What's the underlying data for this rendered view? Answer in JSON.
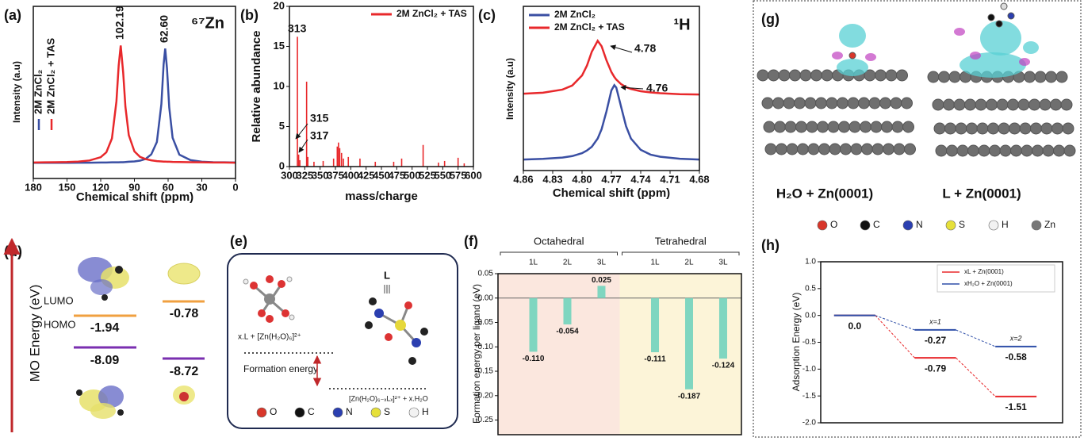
{
  "chart_data": [
    {
      "type": "line",
      "label": "(a)",
      "title": "⁶⁷Zn",
      "x_label": "Chemical shift (ppm)",
      "y_label": "Intensity (a.u)",
      "x": [
        180,
        170,
        160,
        150,
        140,
        130,
        120,
        115,
        110,
        106,
        104,
        102.19,
        100,
        98,
        95,
        90,
        85,
        80,
        75,
        70,
        66,
        64,
        62.6,
        61,
        59,
        56,
        50,
        40,
        30,
        20,
        10,
        0
      ],
      "series": [
        {
          "name": "2M ZnCl₂",
          "color": "#3a4fa3",
          "values": [
            0.1,
            0.1,
            0.1,
            0.1,
            0.101,
            0.101,
            0.102,
            0.102,
            0.103,
            0.103,
            0.103,
            0.104,
            0.104,
            0.105,
            0.107,
            0.109,
            0.114,
            0.125,
            0.154,
            0.233,
            0.475,
            0.729,
            0.83,
            0.704,
            0.454,
            0.26,
            0.152,
            0.117,
            0.107,
            0.104,
            0.103,
            0.102
          ]
        },
        {
          "name": "2M ZnCl₂ + TAS",
          "color": "#e8282b",
          "values": [
            0.102,
            0.103,
            0.104,
            0.105,
            0.108,
            0.115,
            0.136,
            0.167,
            0.256,
            0.493,
            0.722,
            0.85,
            0.677,
            0.458,
            0.277,
            0.173,
            0.138,
            0.124,
            0.116,
            0.111,
            0.109,
            0.108,
            0.108,
            0.107,
            0.107,
            0.106,
            0.105,
            0.104,
            0.103,
            0.102,
            0.102,
            0.101
          ]
        }
      ],
      "xlim": [
        180,
        0
      ],
      "ylim": [
        0,
        1.1
      ],
      "xticks": [
        180,
        150,
        120,
        90,
        60,
        30,
        0
      ],
      "annotations": [
        "102.19",
        "62.60"
      ],
      "legend": "left"
    },
    {
      "type": "bar",
      "label": "(b)",
      "x_label": "mass/charge",
      "y_label": "Relative abundance",
      "x": [
        313,
        315,
        317,
        328,
        330,
        340,
        355,
        372,
        378,
        380,
        382,
        385,
        388,
        396,
        415,
        440,
        470,
        483,
        518,
        543,
        553,
        575,
        585
      ],
      "series": [
        {
          "name": "2M ZnCl₂ + TAS",
          "color": "#e8282b",
          "values": [
            16.2,
            1.5,
            0.8,
            10.6,
            1.2,
            0.6,
            0.7,
            1.0,
            2.5,
            3.0,
            2.3,
            1.7,
            1.0,
            1.2,
            1.0,
            0.6,
            0.6,
            1.0,
            2.7,
            0.5,
            0.7,
            1.1,
            0.4
          ]
        }
      ],
      "xlim": [
        300,
        600
      ],
      "ylim": [
        0,
        20
      ],
      "xticks": [
        300,
        325,
        350,
        375,
        400,
        425,
        450,
        475,
        500,
        525,
        550,
        575,
        600
      ],
      "yticks": [
        0,
        5,
        10,
        15,
        20
      ],
      "annotations": [
        "313",
        "315",
        "317"
      ],
      "legend": "upper right"
    },
    {
      "type": "line",
      "label": "(c)",
      "title": "¹H",
      "x_label": "Chemical shift (ppm)",
      "y_label": "Intensity (a.u)",
      "x": [
        4.86,
        4.84,
        4.82,
        4.81,
        4.8,
        4.795,
        4.79,
        4.784,
        4.78,
        4.775,
        4.77,
        4.767,
        4.765,
        4.76,
        4.755,
        4.75,
        4.74,
        4.73,
        4.72,
        4.7,
        4.68
      ],
      "series": [
        {
          "name": "2M ZnCl₂",
          "color": "#3a4fa3",
          "values": [
            0.067,
            0.071,
            0.079,
            0.088,
            0.106,
            0.122,
            0.145,
            0.195,
            0.252,
            0.361,
            0.488,
            0.52,
            0.505,
            0.387,
            0.27,
            0.195,
            0.126,
            0.097,
            0.084,
            0.072,
            0.067
          ]
        },
        {
          "name": "2M ZnCl₂ + TAS",
          "color": "#e8282b",
          "values": [
            0.468,
            0.474,
            0.493,
            0.518,
            0.579,
            0.639,
            0.724,
            0.79,
            0.757,
            0.671,
            0.6,
            0.57,
            0.554,
            0.526,
            0.508,
            0.497,
            0.483,
            0.476,
            0.471,
            0.465,
            0.463
          ]
        }
      ],
      "xlim": [
        4.86,
        4.68
      ],
      "ylim": [
        0,
        1
      ],
      "xticks": [
        4.86,
        4.83,
        {
          "value": 4.8,
          "label": "4.80"
        },
        4.77,
        4.74,
        4.71,
        4.68
      ],
      "annotations": [
        "4.78",
        "4.76"
      ],
      "legend": "upper left"
    },
    {
      "type": "bar",
      "label": "(f)",
      "y_label": "Formation energy per ligand (eV)",
      "groups": [
        "Octahedral",
        "Tetrahedral"
      ],
      "group_colors": [
        "#fbe7de",
        "#fcf4d8"
      ],
      "categories": [
        "1L",
        "2L",
        "3L",
        "1L",
        "2L",
        "3L"
      ],
      "color": "#7fd6c0",
      "values": [
        -0.11,
        -0.054,
        0.025,
        -0.111,
        -0.187,
        -0.124
      ],
      "value_labels": [
        "-0.110",
        "-0.054",
        "0.025",
        "-0.111",
        "-0.187",
        "-0.124"
      ],
      "ylim": [
        -0.28,
        0.05
      ],
      "yticks": [
        0.05,
        {
          "value": 0,
          "label": "0.00"
        },
        -0.05,
        {
          "value": -0.1,
          "label": "-0.10"
        },
        -0.15,
        {
          "value": -0.2,
          "label": "-0.20"
        },
        -0.25
      ]
    },
    {
      "type": "energy-level",
      "label": "(h)",
      "y_label": "Adsorption Energy (eV)",
      "categories": [
        null,
        "x=1",
        "x=2"
      ],
      "series": [
        {
          "name": "xL + Zn(0001)",
          "color": "#e8282b",
          "values": [
            0.0,
            -0.79,
            -1.51
          ],
          "value_labels": [
            null,
            "-0.79",
            "-1.51"
          ]
        },
        {
          "name": "xH₂O + Zn(0001)",
          "color": "#2f4fa8",
          "values": [
            0.0,
            -0.27,
            -0.58
          ],
          "value_labels": [
            "0.0",
            "-0.27",
            "-0.58"
          ]
        }
      ],
      "ylim": [
        -2.0,
        1.0
      ],
      "yticks": [
        {
          "value": 1,
          "label": "1.0"
        },
        0.5,
        {
          "value": 0,
          "label": "0.0"
        },
        -0.5,
        {
          "value": -1,
          "label": "-1.0"
        },
        -1.5,
        {
          "value": -2,
          "label": "-2.0"
        }
      ],
      "legend": "upper right"
    }
  ],
  "panel_d": {
    "label": "(d)",
    "axis_label": "MO Energy (eV)",
    "lumo_label": "LUMO",
    "homo_label": "HOMO",
    "left": {
      "lumo": "-1.94",
      "homo": "-8.09"
    },
    "right": {
      "lumo": "-0.78",
      "homo": "-8.72"
    }
  },
  "panel_e": {
    "label": "(e)",
    "ligand": "L",
    "reactant": "x.L + [Zn(H₂O)₆]²⁺",
    "arrow_label": "Formation energy",
    "product": "[Zn(H₂O)₆₋ₓLₓ]²⁺ + x.H₂O",
    "atoms": [
      "O",
      "C",
      "N",
      "S",
      "H"
    ]
  },
  "panel_g": {
    "label": "(g)",
    "structures": [
      "H₂O + Zn(0001)",
      "L + Zn(0001)"
    ],
    "atoms": [
      "O",
      "C",
      "N",
      "S",
      "H",
      "Zn"
    ]
  }
}
